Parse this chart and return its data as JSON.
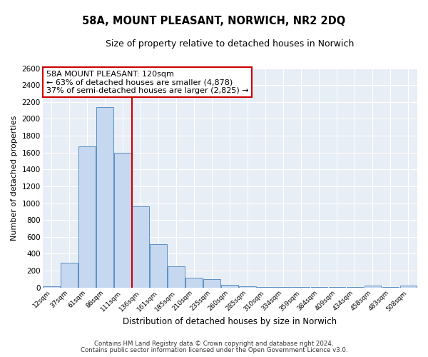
{
  "title": "58A, MOUNT PLEASANT, NORWICH, NR2 2DQ",
  "subtitle": "Size of property relative to detached houses in Norwich",
  "xlabel": "Distribution of detached houses by size in Norwich",
  "ylabel": "Number of detached properties",
  "footer1": "Contains HM Land Registry data © Crown copyright and database right 2024.",
  "footer2": "Contains public sector information licensed under the Open Government Licence v3.0.",
  "bin_labels": [
    "12sqm",
    "37sqm",
    "61sqm",
    "86sqm",
    "111sqm",
    "136sqm",
    "161sqm",
    "185sqm",
    "210sqm",
    "235sqm",
    "260sqm",
    "285sqm",
    "310sqm",
    "334sqm",
    "359sqm",
    "384sqm",
    "409sqm",
    "434sqm",
    "458sqm",
    "483sqm",
    "508sqm"
  ],
  "bar_values": [
    15,
    295,
    1670,
    2140,
    1600,
    960,
    510,
    250,
    120,
    95,
    35,
    15,
    10,
    5,
    5,
    5,
    5,
    5,
    20,
    5,
    20
  ],
  "bar_color": "#c5d8f0",
  "bar_edge_color": "#5a8fc2",
  "fig_background_color": "#ffffff",
  "plot_background_color": "#e8eef5",
  "grid_color": "#ffffff",
  "annotation_text1": "58A MOUNT PLEASANT: 120sqm",
  "annotation_text2": "← 63% of detached houses are smaller (4,878)",
  "annotation_text3": "37% of semi-detached houses are larger (2,825) →",
  "annotation_box_color": "#ffffff",
  "annotation_box_edge": "#cc0000",
  "red_line_color": "#cc0000",
  "ylim": [
    0,
    2600
  ],
  "yticks": [
    0,
    200,
    400,
    600,
    800,
    1000,
    1200,
    1400,
    1600,
    1800,
    2000,
    2200,
    2400,
    2600
  ]
}
